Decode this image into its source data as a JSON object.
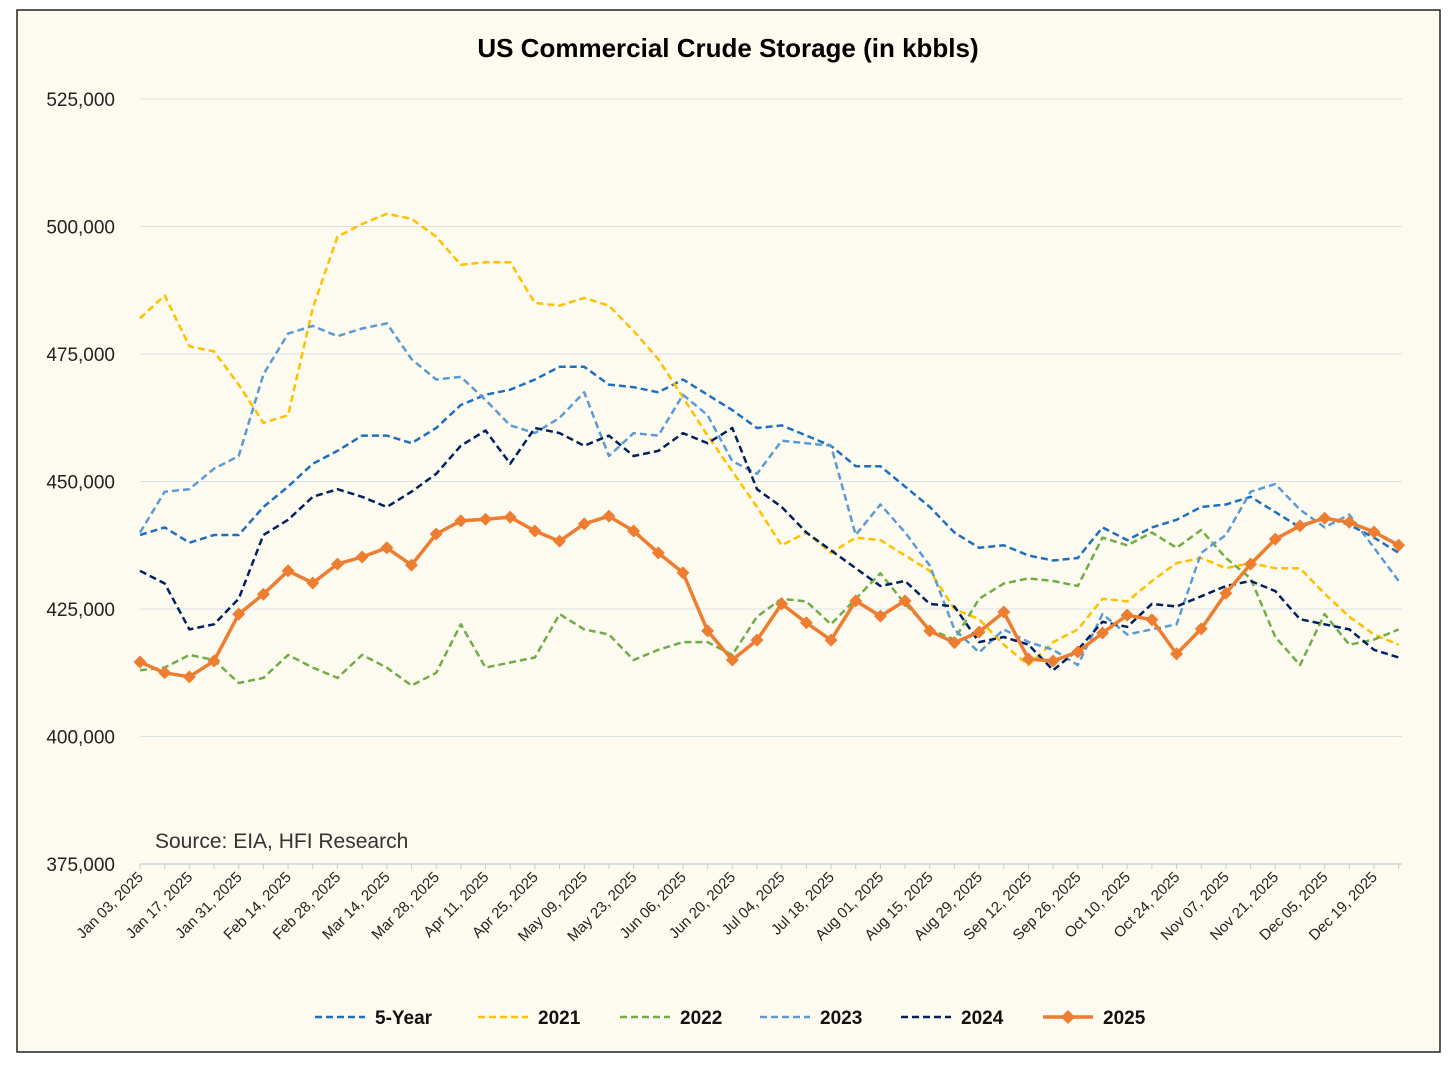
{
  "chart_data": {
    "type": "line",
    "title": "US Commercial Crude Storage (in kbbls)",
    "annotation": "Source: EIA, HFI Research",
    "xlabel": "",
    "ylabel": "",
    "ylim": [
      375000,
      525000
    ],
    "yticks": [
      375000,
      400000,
      425000,
      450000,
      475000,
      500000,
      525000
    ],
    "ytick_labels": [
      "375,000",
      "400,000",
      "425,000",
      "450,000",
      "475,000",
      "500,000",
      "525,000"
    ],
    "grid": true,
    "legend_position": "bottom",
    "categories": [
      "Jan 03, 2025",
      "Jan 10, 2025",
      "Jan 17, 2025",
      "Jan 24, 2025",
      "Jan 31, 2025",
      "Feb 07, 2025",
      "Feb 14, 2025",
      "Feb 21, 2025",
      "Feb 28, 2025",
      "Mar 07, 2025",
      "Mar 14, 2025",
      "Mar 21, 2025",
      "Mar 28, 2025",
      "Apr 04, 2025",
      "Apr 11, 2025",
      "Apr 18, 2025",
      "Apr 25, 2025",
      "May 02, 2025",
      "May 09, 2025",
      "May 16, 2025",
      "May 23, 2025",
      "May 30, 2025",
      "Jun 06, 2025",
      "Jun 13, 2025",
      "Jun 20, 2025",
      "Jun 27, 2025",
      "Jul 04, 2025",
      "Jul 11, 2025",
      "Jul 18, 2025",
      "Jul 25, 2025",
      "Aug 01, 2025",
      "Aug 08, 2025",
      "Aug 15, 2025",
      "Aug 22, 2025",
      "Aug 29, 2025",
      "Sep 05, 2025",
      "Sep 12, 2025",
      "Sep 19, 2025",
      "Sep 26, 2025",
      "Oct 03, 2025",
      "Oct 10, 2025",
      "Oct 17, 2025",
      "Oct 24, 2025",
      "Oct 31, 2025",
      "Nov 07, 2025",
      "Nov 14, 2025",
      "Nov 21, 2025",
      "Nov 28, 2025",
      "Dec 05, 2025",
      "Dec 12, 2025",
      "Dec 19, 2025",
      "Dec 26, 2025"
    ],
    "xtick_labels": [
      "Jan 03, 2025",
      "Jan 17, 2025",
      "Jan 31, 2025",
      "Feb 14, 2025",
      "Feb 28, 2025",
      "Mar 14, 2025",
      "Mar 28, 2025",
      "Apr 11, 2025",
      "Apr 25, 2025",
      "May 09, 2025",
      "May 23, 2025",
      "Jun 06, 2025",
      "Jun 20, 2025",
      "Jul 04, 2025",
      "Jul 18, 2025",
      "Aug 01, 2025",
      "Aug 15, 2025",
      "Aug 29, 2025",
      "Sep 12, 2025",
      "Sep 26, 2025",
      "Oct 10, 2025",
      "Oct 24, 2025",
      "Nov 07, 2025",
      "Nov 21, 2025",
      "Dec 05, 2025",
      "Dec 19, 2025"
    ],
    "series": [
      {
        "name": "5-Year",
        "color": "#1f6fc0",
        "style": "dashed",
        "values": [
          439500,
          441000,
          438000,
          439500,
          439500,
          445000,
          449000,
          453500,
          456000,
          459000,
          459000,
          457500,
          460500,
          465000,
          467000,
          468000,
          470000,
          472500,
          472500,
          469000,
          468500,
          467500,
          470000,
          467000,
          464000,
          460500,
          461000,
          459000,
          457000,
          453000,
          453000,
          449000,
          445000,
          440000,
          437000,
          437500,
          435500,
          434500,
          435000,
          441000,
          438500,
          441000,
          442500,
          445000,
          445500,
          447000,
          444000,
          441000,
          443000,
          441500,
          439000,
          436000
        ]
      },
      {
        "name": "2021",
        "color": "#ffc000",
        "style": "dashed",
        "values": [
          482000,
          486500,
          476500,
          475500,
          469000,
          461500,
          463000,
          484000,
          498000,
          500500,
          502500,
          501500,
          498000,
          492500,
          493000,
          493000,
          485000,
          484500,
          486000,
          484500,
          479500,
          474000,
          466500,
          459000,
          452000,
          445000,
          437500,
          440000,
          436000,
          439000,
          438500,
          435500,
          432500,
          425000,
          423000,
          418000,
          414000,
          418500,
          421000,
          427000,
          426500,
          430500,
          434000,
          435000,
          433000,
          434000,
          433000,
          433000,
          428000,
          423500,
          420000,
          418000
        ]
      },
      {
        "name": "2022",
        "color": "#70ad47",
        "style": "dashed",
        "values": [
          413000,
          413500,
          416000,
          415000,
          410500,
          411500,
          416000,
          413500,
          411500,
          416000,
          413500,
          410000,
          412500,
          422000,
          413500,
          414500,
          415500,
          424000,
          421000,
          420000,
          415000,
          417000,
          418500,
          418500,
          416000,
          423500,
          427000,
          426500,
          422000,
          427000,
          432000,
          426000,
          421000,
          419000,
          427000,
          430000,
          431000,
          430500,
          429500,
          439000,
          437500,
          440000,
          437000,
          440500,
          435000,
          431000,
          419500,
          414000,
          424000,
          418000,
          419000,
          421000
        ]
      },
      {
        "name": "2023",
        "color": "#5b9bd5",
        "style": "dashed",
        "values": [
          440000,
          448000,
          448500,
          452500,
          455000,
          471000,
          479000,
          480500,
          478500,
          480000,
          481000,
          474000,
          470000,
          470500,
          466000,
          461000,
          459500,
          462500,
          467500,
          455000,
          459500,
          459000,
          467000,
          463000,
          454000,
          451500,
          458000,
          457500,
          457000,
          439500,
          445500,
          440000,
          433500,
          421000,
          416500,
          421000,
          418500,
          417000,
          414000,
          424000,
          420000,
          421000,
          422000,
          436000,
          439500,
          448000,
          449500,
          444500,
          441000,
          443500,
          437000,
          430500
        ]
      },
      {
        "name": "2024",
        "color": "#002060",
        "style": "dashed",
        "values": [
          432500,
          430000,
          421000,
          422000,
          427000,
          439500,
          442500,
          447000,
          448500,
          447000,
          445000,
          448000,
          451500,
          457000,
          460000,
          453500,
          460500,
          459500,
          457000,
          459000,
          455000,
          456000,
          459500,
          457500,
          460500,
          448500,
          445000,
          440000,
          436500,
          433000,
          429500,
          430500,
          426000,
          425500,
          418500,
          419500,
          418000,
          413000,
          417000,
          422500,
          421500,
          426000,
          425500,
          427500,
          429500,
          430500,
          428500,
          423000,
          422000,
          421000,
          417000,
          415500
        ]
      },
      {
        "name": "2025",
        "color": "#ed7d31",
        "style": "solid-diamond",
        "values": [
          414600,
          412500,
          411700,
          414800,
          424000,
          427900,
          432500,
          430100,
          433800,
          435200,
          437000,
          433600,
          439700,
          442300,
          442600,
          443000,
          440300,
          438300,
          441700,
          443200,
          440300,
          436000,
          432100,
          420700,
          415000,
          418900,
          426000,
          422300,
          418900,
          426600,
          423600,
          426600,
          420700,
          418400,
          420500,
          424400,
          415200,
          414800,
          416600,
          420300,
          423800,
          422900,
          416200,
          421100,
          428100,
          433800,
          438700,
          441300,
          442800,
          442000,
          440100,
          437500
        ]
      }
    ]
  }
}
